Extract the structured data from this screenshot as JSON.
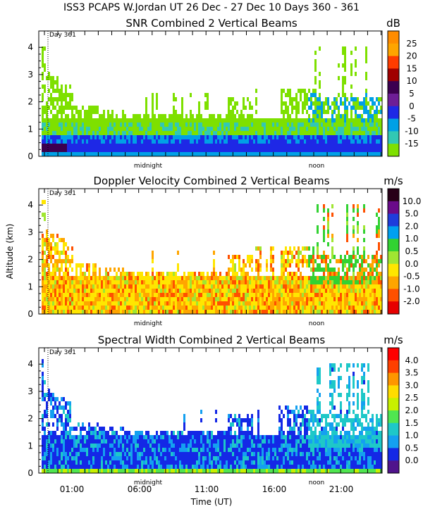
{
  "header": {
    "title": "ISS3 PCAPS W.Jordan UT  26 Dec - 27 Dec 10 Days 360 - 361"
  },
  "shared": {
    "xlabel": "Time (UT)",
    "ylabel": "Altitude (km)",
    "x_ticks": [
      "01:00",
      "06:00",
      "11:00",
      "16:00",
      "21:00"
    ],
    "day_marker": "Day 361",
    "midnight_label": "midnight",
    "noon_label": "noon"
  },
  "chart_data": [
    {
      "type": "heatmap",
      "title": "SNR Combined 2 Vertical Beams",
      "unit": "dB",
      "xlabel": "",
      "ylabel": "",
      "ylim": [
        0,
        4.6
      ],
      "y_ticks": [
        "0",
        "1",
        "2",
        "3",
        "4"
      ],
      "colorbar_labels": [
        "25",
        "20",
        "15",
        "10",
        "5",
        "0",
        "-5",
        "-10",
        "-15"
      ],
      "colors": [
        "#ff8c00",
        "#ffa500",
        "#ff3c00",
        "#a00000",
        "#3c0050",
        "#6e1e96",
        "#1e28e6",
        "#00a0e6",
        "#32c8b4",
        "#7ee000"
      ]
    },
    {
      "type": "heatmap",
      "title": "Doppler Velocity Combined 2 Vertical Beams",
      "unit": "m/s",
      "xlabel": "",
      "ylabel": "Altitude (km)",
      "ylim": [
        0,
        4.6
      ],
      "y_ticks": [
        "0",
        "1",
        "2",
        "3",
        "4"
      ],
      "colorbar_labels": [
        "10.0",
        "5.0",
        "2.0",
        "1.0",
        "0.5",
        "0.0",
        "-0.5",
        "-1.0",
        "-2.0"
      ],
      "colors": [
        "#280018",
        "#6a0a8a",
        "#1e3cdc",
        "#00a0f0",
        "#32d232",
        "#a0e632",
        "#ffe600",
        "#ffa500",
        "#ff5000",
        "#e60000"
      ]
    },
    {
      "type": "heatmap",
      "title": "Spectral Width Combined 2 Vertical Beams",
      "unit": "m/s",
      "xlabel": "Time (UT)",
      "ylabel": "",
      "ylim": [
        0,
        4.6
      ],
      "y_ticks": [
        "0",
        "1",
        "2",
        "3",
        "4"
      ],
      "colorbar_labels": [
        "4.0",
        "3.5",
        "3.0",
        "2.5",
        "2.0",
        "1.5",
        "1.0",
        "0.5",
        "0.0"
      ],
      "colors": [
        "#ff0000",
        "#ff4000",
        "#ff9600",
        "#ffdc00",
        "#c8f000",
        "#50e650",
        "#1ec8c8",
        "#14a0f0",
        "#1428e6",
        "#50148c"
      ]
    }
  ]
}
